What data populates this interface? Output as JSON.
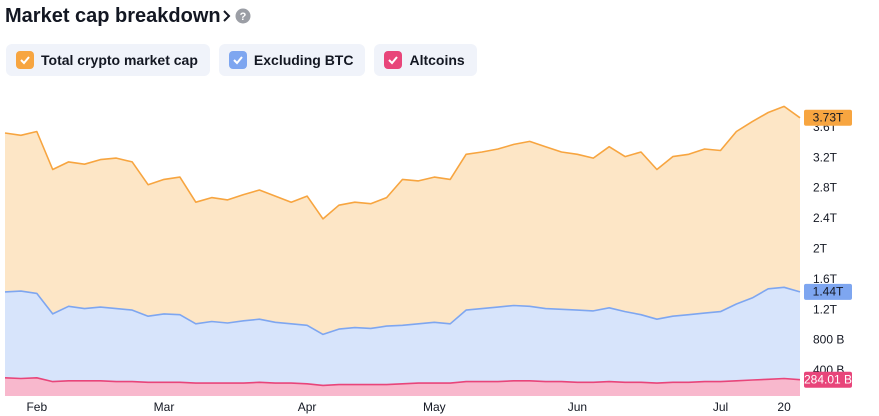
{
  "chart_data": {
    "type": "area",
    "title": "Market cap breakdown",
    "categories": [
      null,
      null,
      "Feb",
      null,
      null,
      null,
      null,
      null,
      null,
      null,
      "Mar",
      null,
      null,
      null,
      null,
      null,
      null,
      null,
      null,
      "Apr",
      null,
      null,
      null,
      null,
      null,
      null,
      null,
      "May",
      null,
      null,
      null,
      null,
      null,
      null,
      null,
      null,
      "Jun",
      null,
      null,
      null,
      null,
      null,
      null,
      null,
      null,
      "Jul",
      null,
      null,
      null,
      "20",
      null
    ],
    "ylim": [
      0.07,
      4.03
    ],
    "yticks": [
      {
        "value": 0.4,
        "label": "400 B"
      },
      {
        "value": 0.8,
        "label": "800 B"
      },
      {
        "value": 1.2,
        "label": "1.2T"
      },
      {
        "value": 1.6,
        "label": "1.6T"
      },
      {
        "value": 2,
        "label": "2T"
      },
      {
        "value": 2.4,
        "label": "2.4T"
      },
      {
        "value": 2.8,
        "label": "2.8T"
      },
      {
        "value": 3.2,
        "label": "3.2T"
      },
      {
        "value": 3.6,
        "label": "3.6T"
      }
    ],
    "series": [
      {
        "name": "Total crypto market cap",
        "color": "#f7a540",
        "fill": "#fde6c6",
        "values": [
          3.53,
          3.5,
          3.55,
          3.05,
          3.15,
          3.12,
          3.18,
          3.2,
          3.15,
          2.85,
          2.92,
          2.95,
          2.62,
          2.68,
          2.65,
          2.72,
          2.78,
          2.7,
          2.62,
          2.7,
          2.4,
          2.58,
          2.62,
          2.6,
          2.68,
          2.92,
          2.9,
          2.95,
          2.92,
          3.25,
          3.28,
          3.32,
          3.38,
          3.42,
          3.35,
          3.28,
          3.25,
          3.2,
          3.35,
          3.22,
          3.28,
          3.05,
          3.22,
          3.25,
          3.32,
          3.3,
          3.55,
          3.68,
          3.8,
          3.88,
          3.73
        ],
        "value_labels": [
          null,
          null,
          null,
          null,
          null,
          null,
          null,
          null,
          null,
          null,
          null,
          null,
          null,
          null,
          null,
          null,
          null,
          null,
          null,
          null,
          null,
          null,
          null,
          null,
          null,
          null,
          null,
          null,
          null,
          null,
          null,
          null,
          null,
          null,
          null,
          null,
          null,
          null,
          null,
          null,
          null,
          null,
          null,
          null,
          null,
          null,
          null,
          null,
          null,
          null,
          "3.73T"
        ]
      },
      {
        "name": "Excluding BTC",
        "color": "#7ea6f0",
        "fill": "#d7e4fb",
        "values": [
          1.44,
          1.45,
          1.42,
          1.15,
          1.25,
          1.22,
          1.24,
          1.22,
          1.2,
          1.12,
          1.15,
          1.14,
          1.02,
          1.05,
          1.03,
          1.06,
          1.08,
          1.04,
          1.02,
          1.0,
          0.88,
          0.95,
          0.97,
          0.96,
          0.99,
          1.0,
          1.02,
          1.04,
          1.02,
          1.2,
          1.22,
          1.24,
          1.26,
          1.25,
          1.22,
          1.21,
          1.2,
          1.19,
          1.23,
          1.18,
          1.14,
          1.08,
          1.12,
          1.14,
          1.16,
          1.18,
          1.28,
          1.36,
          1.48,
          1.5,
          1.44
        ],
        "value_labels": [
          null,
          null,
          null,
          null,
          null,
          null,
          null,
          null,
          null,
          null,
          null,
          null,
          null,
          null,
          null,
          null,
          null,
          null,
          null,
          null,
          null,
          null,
          null,
          null,
          null,
          null,
          null,
          null,
          null,
          null,
          null,
          null,
          null,
          null,
          null,
          null,
          null,
          null,
          null,
          null,
          null,
          null,
          null,
          null,
          null,
          null,
          null,
          null,
          null,
          null,
          "1.44T"
        ]
      },
      {
        "name": "Altcoins",
        "color": "#e8457a",
        "fill": "#f8b8cd",
        "values": [
          0.31,
          0.3,
          0.31,
          0.26,
          0.27,
          0.27,
          0.27,
          0.26,
          0.26,
          0.25,
          0.25,
          0.25,
          0.24,
          0.24,
          0.24,
          0.24,
          0.25,
          0.24,
          0.24,
          0.23,
          0.21,
          0.22,
          0.22,
          0.22,
          0.22,
          0.23,
          0.24,
          0.24,
          0.24,
          0.26,
          0.26,
          0.26,
          0.27,
          0.27,
          0.26,
          0.26,
          0.25,
          0.25,
          0.26,
          0.25,
          0.25,
          0.24,
          0.25,
          0.25,
          0.26,
          0.26,
          0.27,
          0.28,
          0.29,
          0.3,
          0.28401
        ],
        "value_labels": [
          null,
          null,
          null,
          null,
          null,
          null,
          null,
          null,
          null,
          null,
          null,
          null,
          null,
          null,
          null,
          null,
          null,
          null,
          null,
          null,
          null,
          null,
          null,
          null,
          null,
          null,
          null,
          null,
          null,
          null,
          null,
          null,
          null,
          null,
          null,
          null,
          null,
          null,
          null,
          null,
          null,
          null,
          null,
          null,
          null,
          null,
          null,
          null,
          null,
          null,
          "284.01 B"
        ]
      }
    ]
  }
}
